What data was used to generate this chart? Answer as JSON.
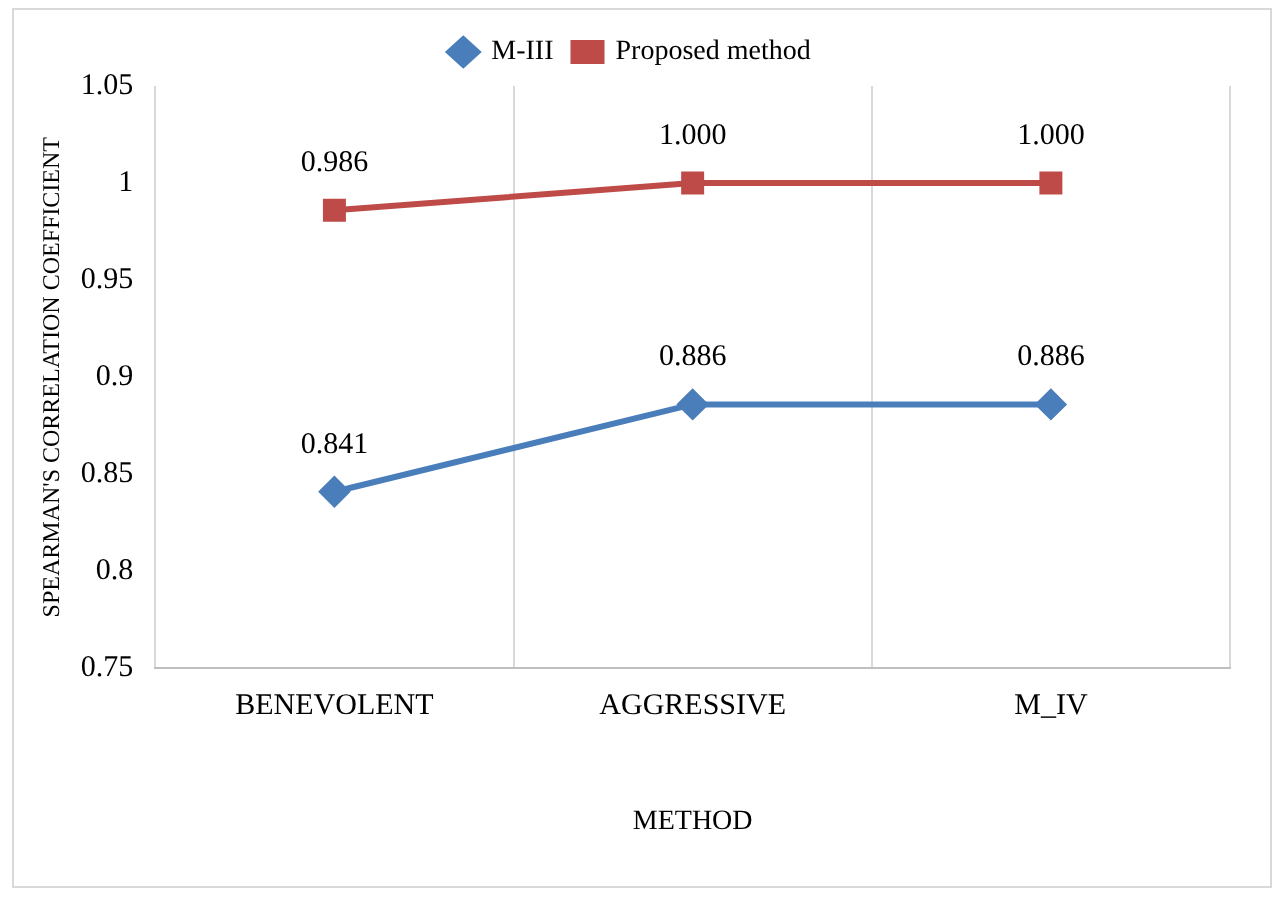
{
  "chart_data": {
    "type": "line",
    "xlabel": "METHOD",
    "ylabel": "SPEARMAN'S CORRELATION COEFFICIENT",
    "categories": [
      "BENEVOLENT",
      "AGGRESSIVE",
      "M_IV"
    ],
    "series": [
      {
        "name": "M-III",
        "color": "#4a7ebb",
        "marker": "diamond",
        "values": [
          0.841,
          0.886,
          0.886
        ],
        "value_labels": [
          "0.841",
          "0.886",
          "0.886"
        ]
      },
      {
        "name": "Proposed method",
        "color": "#be4b48",
        "marker": "square",
        "values": [
          0.986,
          1.0,
          1.0
        ],
        "value_labels": [
          "0.986",
          "1.000",
          "1.000"
        ]
      }
    ],
    "ylim": [
      0.75,
      1.05
    ],
    "yticks": [
      0.75,
      0.8,
      0.85,
      0.9,
      0.95,
      1,
      1.05
    ],
    "grid": "x",
    "legend": "top"
  }
}
